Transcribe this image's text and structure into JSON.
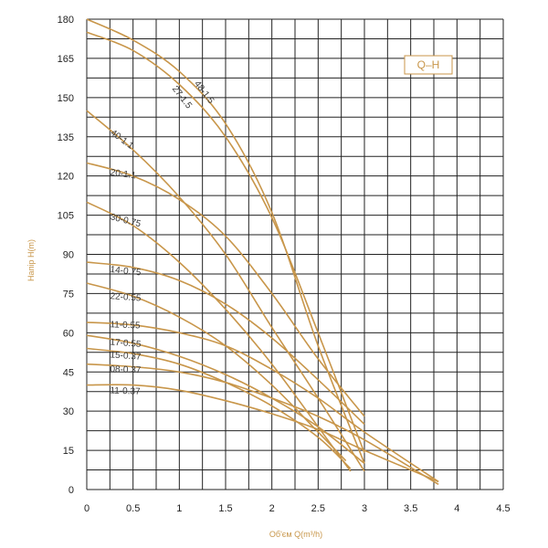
{
  "chart_data": {
    "type": "line",
    "xlabel": "Об'єм Q(m³/h)",
    "ylabel": "Напір H(m)",
    "legend_box": "Q–H",
    "xlim": [
      0,
      4.5
    ],
    "ylim": [
      0,
      180
    ],
    "x_ticks": [
      "0",
      "0.5",
      "1",
      "1.5",
      "2",
      "2.5",
      "3",
      "3.5",
      "4",
      "4.5"
    ],
    "y_ticks": [
      "0",
      "15",
      "30",
      "45",
      "60",
      "75",
      "90",
      "105",
      "120",
      "135",
      "150",
      "165",
      "180"
    ],
    "curve_color": "#c8964a",
    "grid_color": "#222222",
    "series": [
      {
        "name": "48-1.5",
        "x": [
          0,
          0.5,
          1,
          1.5,
          2,
          2.5,
          3
        ],
        "y": [
          180,
          172,
          160,
          140,
          106,
          55,
          10
        ]
      },
      {
        "name": "27-1.5",
        "x": [
          0,
          0.5,
          1,
          1.5,
          2,
          2.5,
          3
        ],
        "y": [
          175,
          168,
          155,
          135,
          104,
          60,
          14
        ]
      },
      {
        "name": "40-1.1",
        "x": [
          0,
          0.5,
          1,
          1.5,
          2,
          2.5,
          3
        ],
        "y": [
          145,
          130,
          112,
          90,
          62,
          35,
          7
        ]
      },
      {
        "name": "20-1.1",
        "x": [
          0,
          0.5,
          1,
          1.5,
          2,
          2.5,
          3
        ],
        "y": [
          125,
          120,
          111,
          97,
          75,
          50,
          28
        ]
      },
      {
        "name": "30-0.75",
        "x": [
          0,
          0.5,
          1,
          1.5,
          2,
          2.5,
          2.85
        ],
        "y": [
          110,
          101,
          87,
          69,
          48,
          24,
          7
        ]
      },
      {
        "name": "14-0.75",
        "x": [
          0,
          0.5,
          1,
          1.5,
          2,
          2.5,
          3
        ],
        "y": [
          87,
          85,
          80,
          71,
          58,
          42,
          25
        ]
      },
      {
        "name": "22-0.55",
        "x": [
          0,
          0.5,
          1,
          1.5,
          2,
          2.5,
          2.8
        ],
        "y": [
          79,
          74,
          66,
          55,
          40,
          22,
          11
        ]
      },
      {
        "name": "11-0.55",
        "x": [
          0,
          0.5,
          1,
          1.5,
          2,
          2.5,
          3,
          3.8
        ],
        "y": [
          64,
          63,
          60,
          55,
          46,
          35,
          22,
          3
        ]
      },
      {
        "name": "17-0.55",
        "x": [
          0,
          0.5,
          1,
          1.5,
          2,
          2.5,
          3
        ],
        "y": [
          59,
          56,
          51,
          44,
          35,
          24,
          10
        ]
      },
      {
        "name": "15-0.37",
        "x": [
          0,
          0.5,
          1,
          1.5,
          2,
          2.5,
          2.85
        ],
        "y": [
          54,
          52,
          48,
          41,
          32,
          20,
          8
        ]
      },
      {
        "name": "08-0.37",
        "x": [
          0,
          0.5,
          1,
          1.5,
          2,
          2.5,
          3,
          3.8
        ],
        "y": [
          48,
          47,
          45,
          41,
          35,
          28,
          19,
          2
        ]
      },
      {
        "name": "11-0.37",
        "x": [
          0,
          0.5,
          1,
          1.5,
          2,
          2.5,
          3,
          3.8
        ],
        "y": [
          40,
          40,
          38,
          34,
          29,
          23,
          15,
          3
        ]
      }
    ]
  }
}
